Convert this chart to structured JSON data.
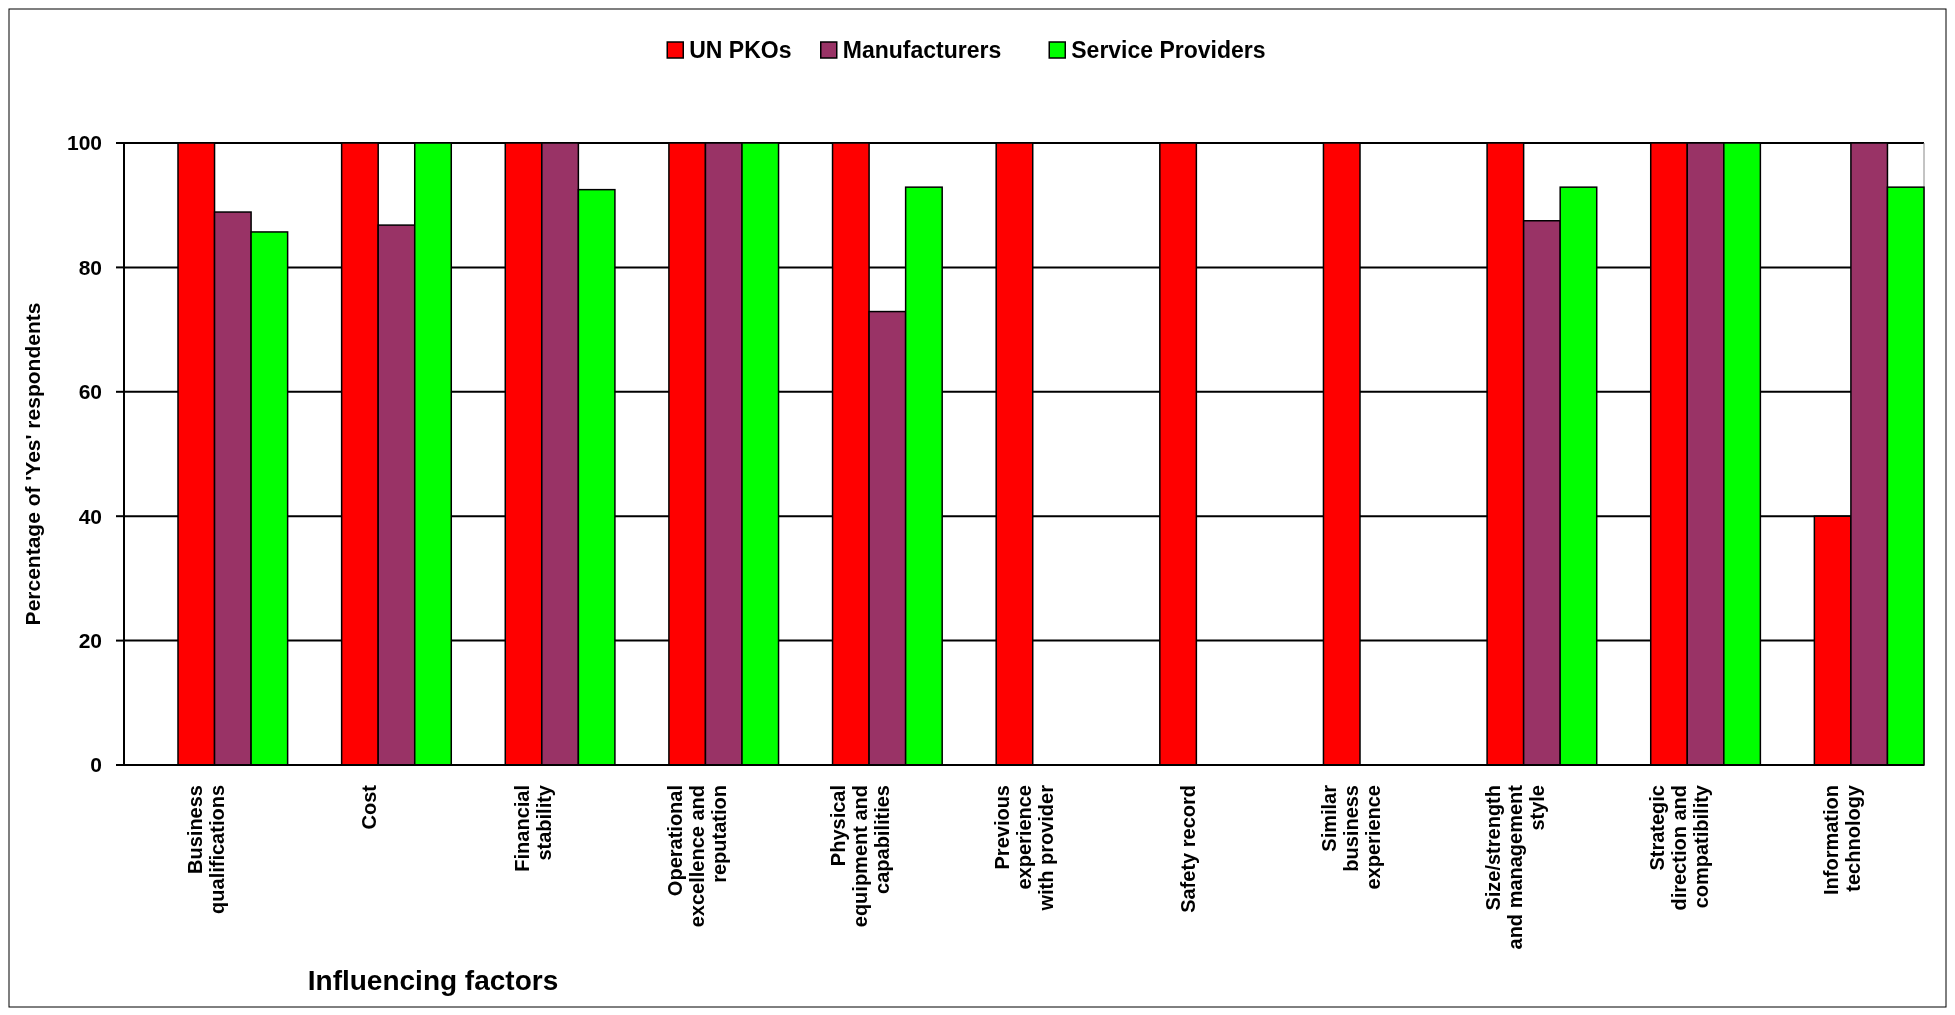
{
  "chart_data": {
    "type": "bar",
    "xlabel": "Influencing factors",
    "ylabel": "Percentage of  'Yes'  respondents",
    "categories": [
      "Business qualifications",
      "Cost",
      "Financial stability",
      "Operational excellence and reputation",
      "Physical equipment and capabilities",
      "Previous experience with provider",
      "Safety record",
      "Similar business experience",
      "Size/strength and management style",
      "Strategic direction and compatibility",
      "Information technology"
    ],
    "series": [
      {
        "name": "UN PKOs",
        "color": "#ff0000",
        "values": [
          100,
          100,
          100,
          100,
          100,
          100,
          100,
          100,
          100,
          100,
          40
        ]
      },
      {
        "name": "Manufacturers",
        "color": "#993366",
        "values": [
          88.9,
          86.8,
          100,
          100,
          72.9,
          0,
          0,
          0,
          87.5,
          100,
          100
        ]
      },
      {
        "name": "Service Providers",
        "color": "#00ff00",
        "values": [
          85.7,
          100,
          92.5,
          100,
          92.9,
          0,
          0,
          0,
          92.9,
          100,
          92.9
        ]
      }
    ],
    "ylim": [
      0,
      100
    ],
    "yticks": [
      0,
      20,
      40,
      60,
      80,
      100
    ],
    "grid": "y",
    "legend": "top"
  }
}
